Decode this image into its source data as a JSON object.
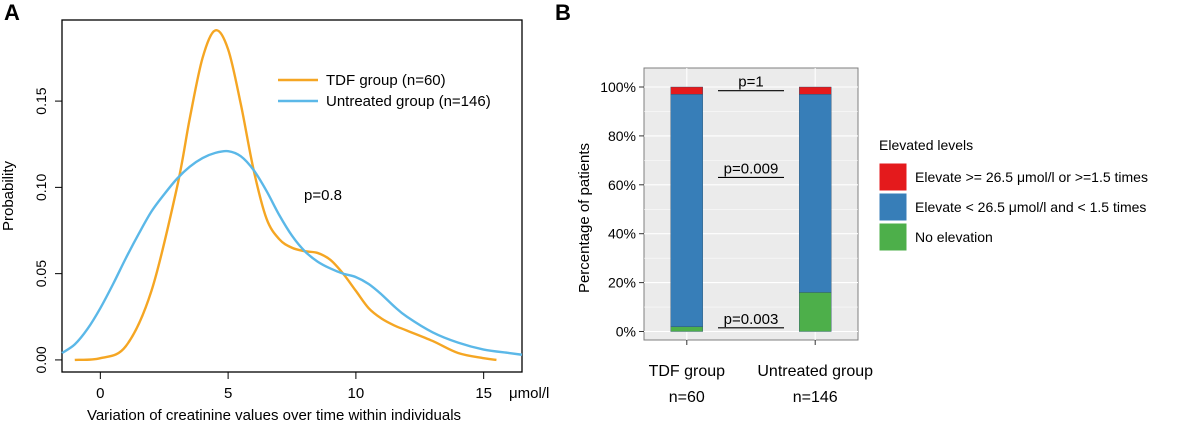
{
  "panels": {
    "a_label": "A",
    "b_label": "B"
  },
  "colors": {
    "tdf": "#F5A623",
    "untreated": "#5BB8E8",
    "elevate_high": "#E41A1C",
    "elevate_low": "#377EB8",
    "no_elevation": "#4DAF4A",
    "panel_bg": "#EBEBEB",
    "grid": "#FFFFFF"
  },
  "chart_data": [
    {
      "type": "line",
      "panel": "A",
      "xlabel": "Variation of creatinine values over time within individuals",
      "ylabel": "Probability",
      "x_unit": "μmol/l",
      "xlim": [
        -1.5,
        16.5
      ],
      "ylim": [
        -0.007,
        0.197
      ],
      "xticks": [
        0,
        5,
        10,
        15
      ],
      "yticks": [
        0.0,
        0.05,
        0.1,
        0.15
      ],
      "ytick_labels": [
        "0.00",
        "0.05",
        "0.10",
        "0.15"
      ],
      "annotation": "p=0.8",
      "legend_position": "top-right",
      "series": [
        {
          "name": "TDF group (n=60)",
          "color_key": "tdf",
          "x": [
            -1.0,
            0.0,
            1.0,
            2.0,
            3.0,
            3.5,
            4.0,
            4.5,
            5.0,
            5.5,
            6.0,
            6.5,
            7.0,
            7.5,
            8.0,
            8.5,
            9.0,
            9.5,
            10.0,
            10.5,
            11.0,
            11.5,
            12.0,
            13.0,
            14.0,
            15.0,
            15.5
          ],
          "y": [
            0.0,
            0.001,
            0.008,
            0.04,
            0.1,
            0.14,
            0.175,
            0.191,
            0.18,
            0.148,
            0.11,
            0.082,
            0.07,
            0.065,
            0.063,
            0.062,
            0.058,
            0.05,
            0.04,
            0.03,
            0.024,
            0.02,
            0.017,
            0.011,
            0.004,
            0.001,
            0.0
          ]
        },
        {
          "name": "Untreated group (n=146)",
          "color_key": "untreated",
          "x": [
            -1.5,
            -1.0,
            -0.5,
            0.0,
            0.5,
            1.0,
            1.5,
            2.0,
            2.5,
            3.0,
            3.5,
            4.0,
            4.5,
            5.0,
            5.5,
            6.0,
            6.5,
            7.0,
            7.5,
            8.0,
            8.5,
            9.0,
            9.5,
            10.0,
            10.5,
            11.0,
            11.5,
            12.0,
            13.0,
            14.0,
            15.0,
            16.0,
            16.5
          ],
          "y": [
            0.004,
            0.009,
            0.018,
            0.03,
            0.044,
            0.059,
            0.073,
            0.086,
            0.096,
            0.105,
            0.112,
            0.117,
            0.12,
            0.121,
            0.118,
            0.11,
            0.098,
            0.084,
            0.072,
            0.063,
            0.057,
            0.053,
            0.05,
            0.048,
            0.044,
            0.038,
            0.031,
            0.025,
            0.016,
            0.01,
            0.006,
            0.004,
            0.003
          ]
        }
      ]
    },
    {
      "type": "bar",
      "stacked": true,
      "panel": "B",
      "ylabel": "Percentage of patients",
      "ylim": [
        0,
        100
      ],
      "ytick_labels": [
        "0%",
        "20%",
        "40%",
        "60%",
        "80%",
        "100%"
      ],
      "yticks": [
        0,
        20,
        40,
        60,
        80,
        100
      ],
      "categories": [
        "TDF group",
        "Untreated group"
      ],
      "category_sublabels": [
        "n=60",
        "n=146"
      ],
      "legend_title": "Elevated levels",
      "legend_position": "right",
      "series": [
        {
          "name": "No elevation",
          "color_key": "no_elevation",
          "values": [
            2,
            16
          ]
        },
        {
          "name": "Elevate < 26.5 μmol/l and < 1.5 times",
          "color_key": "elevate_low",
          "values": [
            95,
            81
          ]
        },
        {
          "name": "Elevate >= 26.5 μmol/l or >=1.5 times",
          "color_key": "elevate_high",
          "values": [
            3,
            3
          ]
        }
      ],
      "legend_order": [
        2,
        1,
        0
      ],
      "annotations": [
        {
          "text": "p=1",
          "y": 98.5
        },
        {
          "text": "p=0.009",
          "y": 63
        },
        {
          "text": "p=0.003",
          "y": 1.5
        }
      ]
    }
  ]
}
